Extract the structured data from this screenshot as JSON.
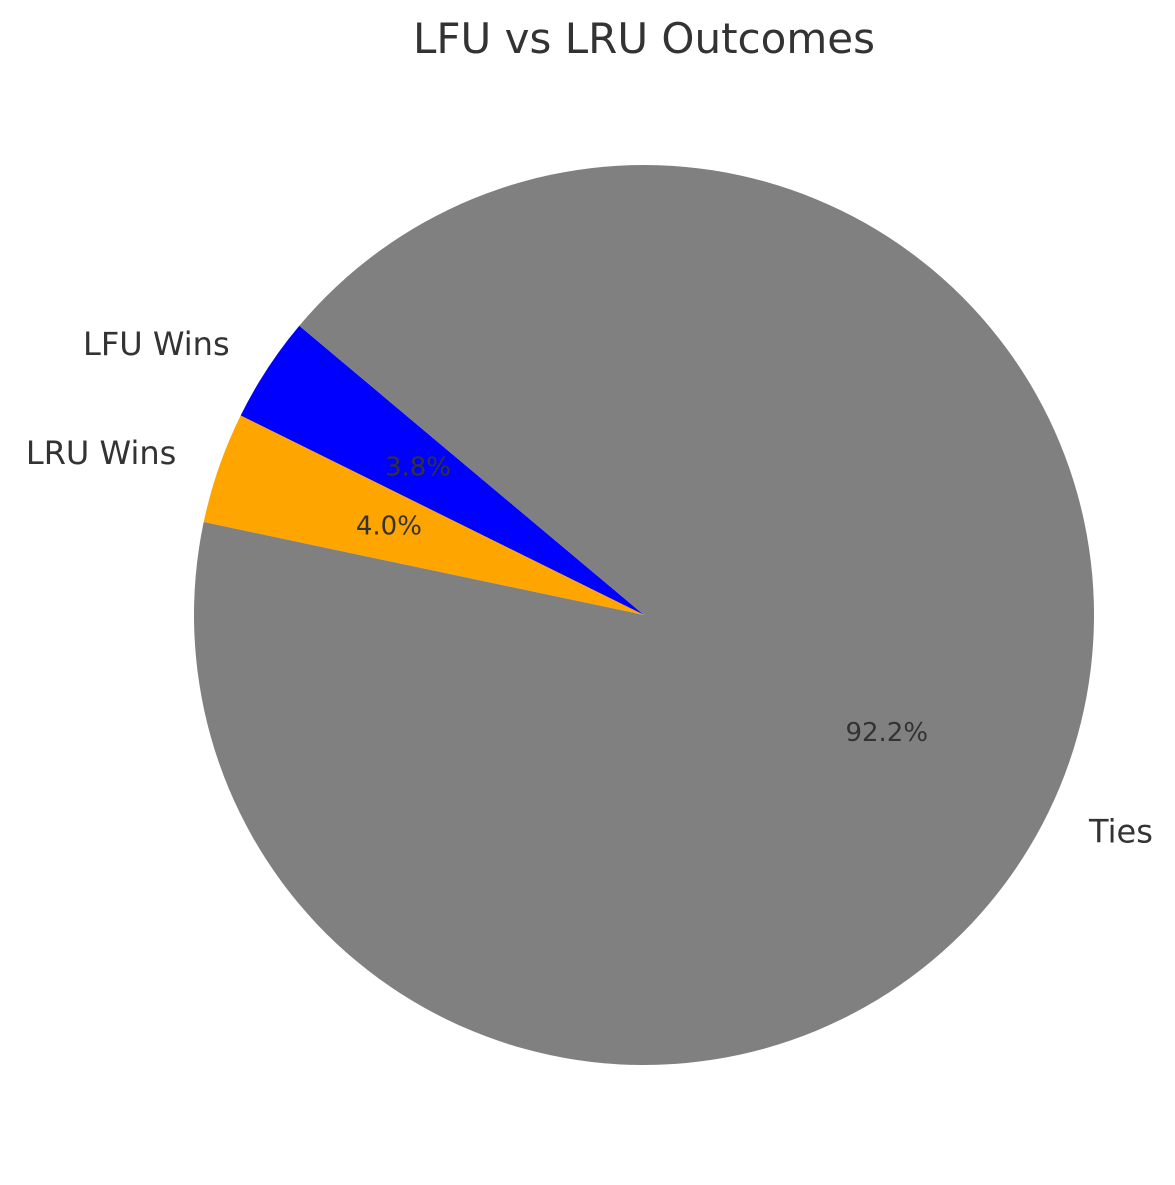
{
  "chart_data": {
    "type": "pie",
    "title": "LFU vs LRU Outcomes",
    "categories": [
      "LFU Wins",
      "LRU Wins",
      "Ties"
    ],
    "values": [
      3.8,
      4.0,
      92.2
    ],
    "value_labels": [
      "3.8%",
      "4.0%",
      "92.2%"
    ],
    "colors": [
      "#0000ff",
      "#ffa500",
      "#808080"
    ],
    "start_angle_deg": 140,
    "direction": "counterclockwise",
    "legend": "none",
    "grid": false
  }
}
